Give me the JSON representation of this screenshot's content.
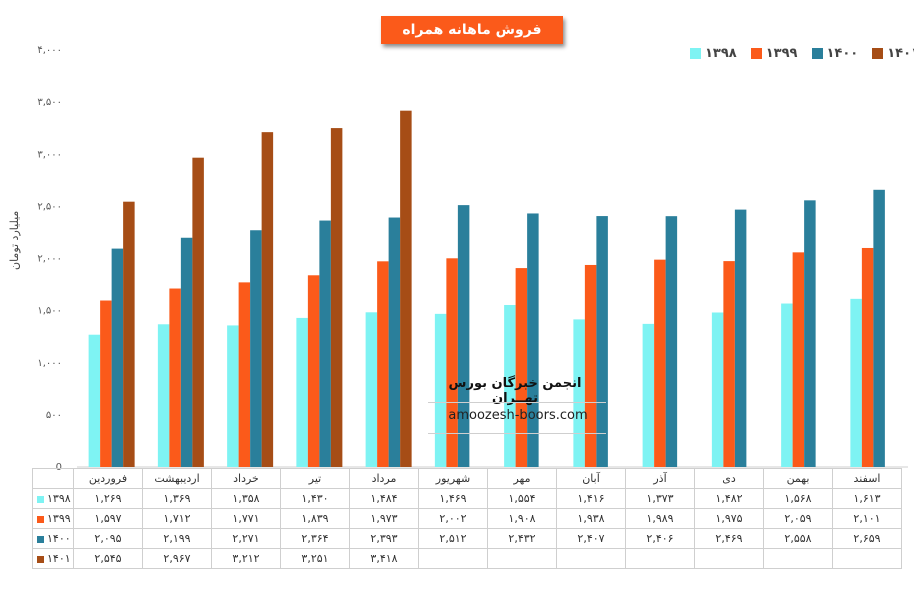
{
  "chart_data": {
    "type": "bar",
    "title": "فروش ماهانه همراه",
    "ylabel": "میلیارد تومان",
    "ylim": [
      0,
      4000
    ],
    "yticks": [
      "0",
      "۵۰۰",
      "۱,۰۰۰",
      "۱,۵۰۰",
      "۲,۰۰۰",
      "۲,۵۰۰",
      "۳,۰۰۰",
      "۳,۵۰۰",
      "۴,۰۰۰"
    ],
    "ytick_values": [
      0,
      500,
      1000,
      1500,
      2000,
      2500,
      3000,
      3500,
      4000
    ],
    "categories": [
      "فروردین",
      "اردیبهشت",
      "خرداد",
      "تیر",
      "مرداد",
      "شهریور",
      "مهر",
      "آبان",
      "آذر",
      "دی",
      "بهمن",
      "اسفند"
    ],
    "legend_position": "top-right",
    "grid": false,
    "series": [
      {
        "name": "۱۳۹۸",
        "color": "#7ef3f3",
        "values": [
          1269,
          1369,
          1358,
          1430,
          1484,
          1469,
          1554,
          1416,
          1373,
          1482,
          1568,
          1613
        ],
        "labels": [
          "۱,۲۶۹",
          "۱,۳۶۹",
          "۱,۳۵۸",
          "۱,۴۳۰",
          "۱,۴۸۴",
          "۱,۴۶۹",
          "۱,۵۵۴",
          "۱,۴۱۶",
          "۱,۳۷۳",
          "۱,۴۸۲",
          "۱,۵۶۸",
          "۱,۶۱۳"
        ]
      },
      {
        "name": "۱۳۹۹",
        "color": "#fb5a1a",
        "values": [
          1597,
          1712,
          1771,
          1839,
          1973,
          2002,
          1908,
          1938,
          1989,
          1975,
          2059,
          2101
        ],
        "labels": [
          "۱,۵۹۷",
          "۱,۷۱۲",
          "۱,۷۷۱",
          "۱,۸۳۹",
          "۱,۹۷۳",
          "۲,۰۰۲",
          "۱,۹۰۸",
          "۱,۹۳۸",
          "۱,۹۸۹",
          "۱,۹۷۵",
          "۲,۰۵۹",
          "۲,۱۰۱"
        ]
      },
      {
        "name": "۱۴۰۰",
        "color": "#2a7f9b",
        "values": [
          2095,
          2199,
          2271,
          2364,
          2393,
          2512,
          2432,
          2407,
          2406,
          2469,
          2558,
          2659
        ],
        "labels": [
          "۲,۰۹۵",
          "۲,۱۹۹",
          "۲,۲۷۱",
          "۲,۳۶۴",
          "۲,۳۹۳",
          "۲,۵۱۲",
          "۲,۴۳۲",
          "۲,۴۰۷",
          "۲,۴۰۶",
          "۲,۴۶۹",
          "۲,۵۵۸",
          "۲,۶۵۹"
        ]
      },
      {
        "name": "۱۴۰۱",
        "color": "#a64d16",
        "values": [
          2545,
          2967,
          3212,
          3251,
          3418,
          null,
          null,
          null,
          null,
          null,
          null,
          null
        ],
        "labels": [
          "۲,۵۴۵",
          "۲,۹۶۷",
          "۳,۲۱۲",
          "۳,۲۵۱",
          "۳,۴۱۸",
          "",
          "",
          "",
          "",
          "",
          "",
          ""
        ]
      }
    ]
  },
  "watermark": {
    "title": "انجمن خبرگان بورس تهــران",
    "url": "amoozesh-boors.com"
  }
}
